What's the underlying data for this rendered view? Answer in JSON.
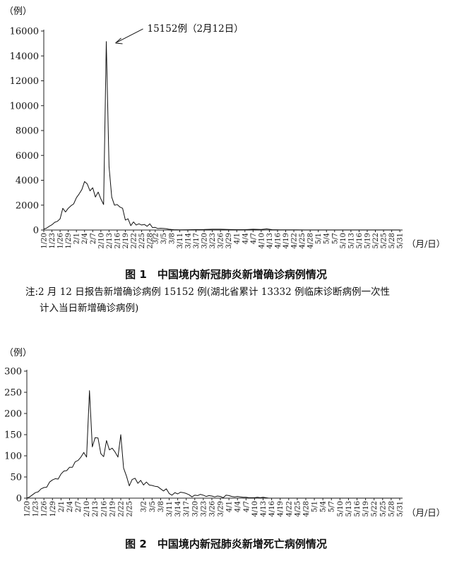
{
  "chart_data": [
    {
      "type": "line",
      "caption": "图 1　中国境内新冠肺炎新增确诊病例情况",
      "ylabel": "（例）",
      "xlabel": "（月/日）",
      "ylim": [
        0,
        16000
      ],
      "yticks": [
        0,
        2000,
        4000,
        6000,
        8000,
        10000,
        12000,
        14000,
        16000
      ],
      "xrange": [
        0,
        132
      ],
      "xticks": [
        {
          "i": 0,
          "label": "1/20"
        },
        {
          "i": 3,
          "label": "1/23"
        },
        {
          "i": 6,
          "label": "1/26"
        },
        {
          "i": 9,
          "label": "1/29"
        },
        {
          "i": 12,
          "label": "2/1"
        },
        {
          "i": 15,
          "label": "2/4"
        },
        {
          "i": 18,
          "label": "2/7"
        },
        {
          "i": 21,
          "label": "2/10"
        },
        {
          "i": 24,
          "label": "2/13"
        },
        {
          "i": 27,
          "label": "2/16"
        },
        {
          "i": 30,
          "label": "2/19"
        },
        {
          "i": 33,
          "label": "2/22"
        },
        {
          "i": 36,
          "label": "2/25"
        },
        {
          "i": 39,
          "label": "2/28"
        },
        {
          "i": 41,
          "label": "3/2"
        },
        {
          "i": 44,
          "label": "3/5"
        },
        {
          "i": 47,
          "label": "3/8"
        },
        {
          "i": 50,
          "label": "3/11"
        },
        {
          "i": 53,
          "label": "3/14"
        },
        {
          "i": 56,
          "label": "3/17"
        },
        {
          "i": 59,
          "label": "3/20"
        },
        {
          "i": 62,
          "label": "3/23"
        },
        {
          "i": 65,
          "label": "3/26"
        },
        {
          "i": 68,
          "label": "3/29"
        },
        {
          "i": 71,
          "label": "4/1"
        },
        {
          "i": 74,
          "label": "4/4"
        },
        {
          "i": 77,
          "label": "4/7"
        },
        {
          "i": 80,
          "label": "4/10"
        },
        {
          "i": 83,
          "label": "4/13"
        },
        {
          "i": 86,
          "label": "4/16"
        },
        {
          "i": 89,
          "label": "4/19"
        },
        {
          "i": 92,
          "label": "4/22"
        },
        {
          "i": 95,
          "label": "4/25"
        },
        {
          "i": 98,
          "label": "4/28"
        },
        {
          "i": 101,
          "label": "5/1"
        },
        {
          "i": 104,
          "label": "5/4"
        },
        {
          "i": 107,
          "label": "5/7"
        },
        {
          "i": 110,
          "label": "5/10"
        },
        {
          "i": 113,
          "label": "5/13"
        },
        {
          "i": 116,
          "label": "5/16"
        },
        {
          "i": 119,
          "label": "5/19"
        },
        {
          "i": 122,
          "label": "5/22"
        },
        {
          "i": 125,
          "label": "5/25"
        },
        {
          "i": 128,
          "label": "5/28"
        },
        {
          "i": 131,
          "label": "5/31"
        }
      ],
      "series": [
        {
          "values": [
            [
              0,
              80
            ],
            [
              1,
              150
            ],
            [
              2,
              300
            ],
            [
              3,
              420
            ],
            [
              4,
              620
            ],
            [
              5,
              700
            ],
            [
              6,
              900
            ],
            [
              7,
              1750
            ],
            [
              8,
              1450
            ],
            [
              9,
              1750
            ],
            [
              10,
              1950
            ],
            [
              11,
              2100
            ],
            [
              12,
              2600
            ],
            [
              13,
              2900
            ],
            [
              14,
              3250
            ],
            [
              15,
              3900
            ],
            [
              16,
              3700
            ],
            [
              17,
              3150
            ],
            [
              18,
              3400
            ],
            [
              19,
              2650
            ],
            [
              20,
              3050
            ],
            [
              21,
              2500
            ],
            [
              22,
              2050
            ],
            [
              23,
              15152
            ],
            [
              24,
              5100
            ],
            [
              25,
              2650
            ],
            [
              26,
              2000
            ],
            [
              27,
              2050
            ],
            [
              28,
              1850
            ],
            [
              29,
              1750
            ],
            [
              30,
              800
            ],
            [
              31,
              900
            ],
            [
              32,
              350
            ],
            [
              33,
              650
            ],
            [
              34,
              400
            ],
            [
              35,
              500
            ],
            [
              36,
              400
            ],
            [
              37,
              450
            ],
            [
              38,
              300
            ],
            [
              39,
              500
            ],
            [
              40,
              200
            ],
            [
              41,
              210
            ],
            [
              42,
              120
            ],
            [
              43,
              140
            ],
            [
              44,
              130
            ],
            [
              45,
              110
            ],
            [
              46,
              60
            ],
            [
              47,
              40
            ],
            [
              48,
              24
            ],
            [
              49,
              20
            ],
            [
              50,
              15
            ],
            [
              53,
              20
            ],
            [
              56,
              35
            ],
            [
              59,
              40
            ],
            [
              62,
              60
            ],
            [
              65,
              60
            ],
            [
              68,
              40
            ],
            [
              71,
              30
            ],
            [
              74,
              30
            ],
            [
              77,
              60
            ],
            [
              80,
              40
            ],
            [
              82,
              90
            ],
            [
              84,
              30
            ],
            [
              87,
              15
            ],
            [
              90,
              10
            ],
            [
              93,
              10
            ],
            [
              96,
              5
            ],
            [
              100,
              5
            ],
            [
              105,
              5
            ],
            [
              110,
              5
            ],
            [
              115,
              3
            ],
            [
              120,
              3
            ],
            [
              125,
              3
            ],
            [
              131,
              3
            ]
          ]
        }
      ],
      "annotation": {
        "text": "15152例（2月12日）",
        "i": 23,
        "value": 15152
      }
    },
    {
      "type": "line",
      "caption": "图 2　中国境内新冠肺炎新增死亡病例情况",
      "ylabel": "（例）",
      "xlabel": "（月/日）",
      "ylim": [
        0,
        300
      ],
      "yticks": [
        0,
        50,
        100,
        150,
        200,
        250,
        300
      ],
      "xrange": [
        0,
        132
      ],
      "xticks": [
        {
          "i": 0,
          "label": "1/20"
        },
        {
          "i": 3,
          "label": "1/23"
        },
        {
          "i": 6,
          "label": "1/26"
        },
        {
          "i": 9,
          "label": "1/29"
        },
        {
          "i": 12,
          "label": "2/1"
        },
        {
          "i": 15,
          "label": "2/4"
        },
        {
          "i": 18,
          "label": "2/7"
        },
        {
          "i": 21,
          "label": "2/10"
        },
        {
          "i": 24,
          "label": "2/13"
        },
        {
          "i": 27,
          "label": "2/16"
        },
        {
          "i": 30,
          "label": "2/19"
        },
        {
          "i": 33,
          "label": "2/22"
        },
        {
          "i": 36,
          "label": "2/25"
        },
        {
          "i": 41,
          "label": "3/2"
        },
        {
          "i": 44,
          "label": "3/5"
        },
        {
          "i": 47,
          "label": "3/8"
        },
        {
          "i": 50,
          "label": "3/11"
        },
        {
          "i": 53,
          "label": "3/14"
        },
        {
          "i": 56,
          "label": "3/17"
        },
        {
          "i": 59,
          "label": "3/20"
        },
        {
          "i": 62,
          "label": "3/23"
        },
        {
          "i": 65,
          "label": "3/26"
        },
        {
          "i": 68,
          "label": "3/29"
        },
        {
          "i": 71,
          "label": "4/1"
        },
        {
          "i": 74,
          "label": "4/4"
        },
        {
          "i": 77,
          "label": "4/7"
        },
        {
          "i": 80,
          "label": "4/10"
        },
        {
          "i": 83,
          "label": "4/13"
        },
        {
          "i": 86,
          "label": "4/16"
        },
        {
          "i": 89,
          "label": "4/19"
        },
        {
          "i": 92,
          "label": "4/22"
        },
        {
          "i": 95,
          "label": "4/25"
        },
        {
          "i": 98,
          "label": "4/28"
        },
        {
          "i": 101,
          "label": "5/1"
        },
        {
          "i": 104,
          "label": "5/4"
        },
        {
          "i": 107,
          "label": "5/7"
        },
        {
          "i": 110,
          "label": "5/10"
        },
        {
          "i": 113,
          "label": "5/13"
        },
        {
          "i": 116,
          "label": "5/16"
        },
        {
          "i": 119,
          "label": "5/19"
        },
        {
          "i": 122,
          "label": "5/22"
        },
        {
          "i": 125,
          "label": "5/25"
        },
        {
          "i": 128,
          "label": "5/28"
        },
        {
          "i": 131,
          "label": "5/31"
        }
      ],
      "series": [
        {
          "values": [
            [
              0,
              0
            ],
            [
              1,
              3
            ],
            [
              2,
              8
            ],
            [
              3,
              13
            ],
            [
              4,
              15
            ],
            [
              5,
              22
            ],
            [
              6,
              25
            ],
            [
              7,
              26
            ],
            [
              8,
              38
            ],
            [
              9,
              43
            ],
            [
              10,
              46
            ],
            [
              11,
              45
            ],
            [
              12,
              57
            ],
            [
              13,
              64
            ],
            [
              14,
              65
            ],
            [
              15,
              73
            ],
            [
              16,
              73
            ],
            [
              17,
              86
            ],
            [
              18,
              89
            ],
            [
              19,
              97
            ],
            [
              20,
              108
            ],
            [
              21,
              97
            ],
            [
              22,
              254
            ],
            [
              23,
              121
            ],
            [
              24,
              143
            ],
            [
              25,
              142
            ],
            [
              26,
              105
            ],
            [
              27,
              98
            ],
            [
              28,
              136
            ],
            [
              29,
              114
            ],
            [
              30,
              118
            ],
            [
              31,
              109
            ],
            [
              32,
              97
            ],
            [
              33,
              150
            ],
            [
              34,
              71
            ],
            [
              35,
              52
            ],
            [
              36,
              29
            ],
            [
              37,
              44
            ],
            [
              38,
              47
            ],
            [
              39,
              35
            ],
            [
              40,
              42
            ],
            [
              41,
              31
            ],
            [
              42,
              38
            ],
            [
              43,
              31
            ],
            [
              44,
              30
            ],
            [
              45,
              28
            ],
            [
              46,
              27
            ],
            [
              47,
              22
            ],
            [
              48,
              17
            ],
            [
              49,
              22
            ],
            [
              50,
              11
            ],
            [
              51,
              7
            ],
            [
              52,
              13
            ],
            [
              53,
              10
            ],
            [
              54,
              14
            ],
            [
              55,
              13
            ],
            [
              56,
              11
            ],
            [
              57,
              8
            ],
            [
              58,
              3
            ],
            [
              59,
              7
            ],
            [
              60,
              6
            ],
            [
              61,
              9
            ],
            [
              62,
              7
            ],
            [
              63,
              4
            ],
            [
              64,
              6
            ],
            [
              65,
              5
            ],
            [
              66,
              3
            ],
            [
              67,
              5
            ],
            [
              68,
              4
            ],
            [
              69,
              1
            ],
            [
              70,
              7
            ],
            [
              71,
              6
            ],
            [
              72,
              4
            ],
            [
              73,
              3
            ],
            [
              74,
              4
            ],
            [
              75,
              3
            ],
            [
              76,
              2
            ],
            [
              77,
              2
            ],
            [
              78,
              1
            ],
            [
              79,
              1
            ],
            [
              80,
              1
            ],
            [
              81,
              2
            ],
            [
              82,
              1
            ],
            [
              83,
              2
            ],
            [
              84,
              1
            ],
            [
              85,
              0
            ],
            [
              90,
              0
            ],
            [
              100,
              0
            ],
            [
              110,
              0
            ],
            [
              120,
              0
            ],
            [
              131,
              0
            ]
          ]
        }
      ]
    }
  ],
  "note_line1": "注:2 月 12 日报告新增确诊病例 15152 例(湖北省累计 13332 例临床诊断病例一次性",
  "note_line2": "计入当日新增确诊病例)"
}
